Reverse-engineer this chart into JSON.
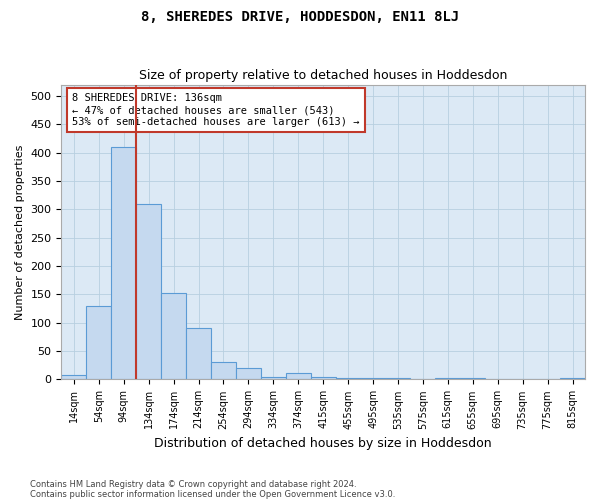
{
  "title": "8, SHEREDES DRIVE, HODDESDON, EN11 8LJ",
  "subtitle": "Size of property relative to detached houses in Hoddesdon",
  "xlabel": "Distribution of detached houses by size in Hoddesdon",
  "ylabel": "Number of detached properties",
  "bar_labels": [
    "14sqm",
    "54sqm",
    "94sqm",
    "134sqm",
    "174sqm",
    "214sqm",
    "254sqm",
    "294sqm",
    "334sqm",
    "374sqm",
    "415sqm",
    "455sqm",
    "495sqm",
    "535sqm",
    "575sqm",
    "615sqm",
    "655sqm",
    "695sqm",
    "735sqm",
    "775sqm",
    "815sqm"
  ],
  "bar_values": [
    7,
    130,
    410,
    310,
    152,
    90,
    30,
    20,
    5,
    12,
    5,
    3,
    3,
    3,
    0,
    3,
    3,
    0,
    0,
    0,
    2
  ],
  "bar_color": "#c5d9ef",
  "bar_edgecolor": "#5b9bd5",
  "vline_pos": 2.5,
  "vertical_line_color": "#c0392b",
  "annotation_text": "8 SHEREDES DRIVE: 136sqm\n← 47% of detached houses are smaller (543)\n53% of semi-detached houses are larger (613) →",
  "annotation_box_edgecolor": "#c0392b",
  "annotation_box_facecolor": "#ffffff",
  "ylim": [
    0,
    520
  ],
  "yticks": [
    0,
    50,
    100,
    150,
    200,
    250,
    300,
    350,
    400,
    450,
    500
  ],
  "footer_line1": "Contains HM Land Registry data © Crown copyright and database right 2024.",
  "footer_line2": "Contains public sector information licensed under the Open Government Licence v3.0.",
  "bg_color": "#ffffff",
  "plot_bg_color": "#dce9f5",
  "grid_color": "#b8cfe0"
}
